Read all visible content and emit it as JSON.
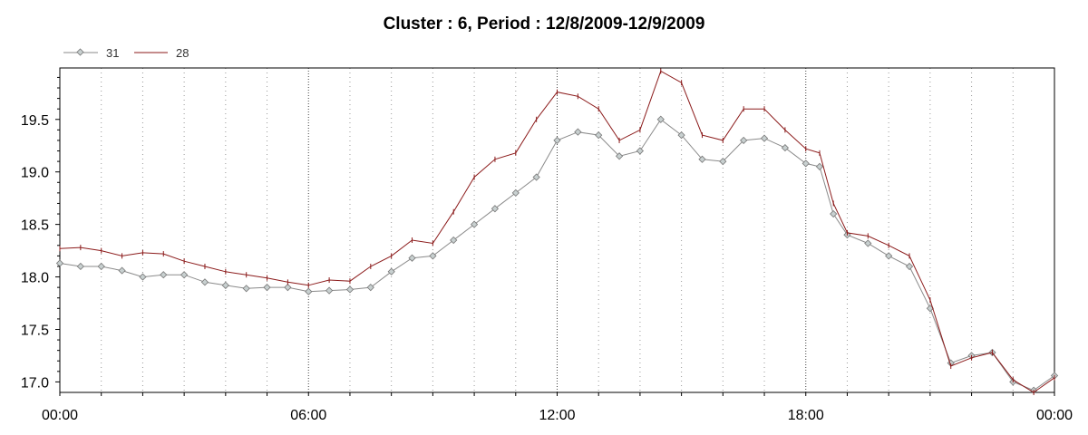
{
  "chart_data": {
    "type": "line",
    "title": "Cluster : 6, Period : 12/8/2009-12/9/2009",
    "xlabel": "",
    "ylabel": "",
    "x_ticks": [
      "00:00",
      "06:00",
      "12:00",
      "18:00",
      "00:00"
    ],
    "y_ticks": [
      "17.0",
      "17.5",
      "18.0",
      "18.5",
      "19.0",
      "19.5"
    ],
    "xlim_hours": [
      0,
      24
    ],
    "ylim": [
      16.9,
      19.99
    ],
    "grid": "dotted vertical lines every hour, stronger every 6 hours",
    "legend_placement": "top-left",
    "series": [
      {
        "name": "31",
        "color": "#8a8a8a",
        "marker": "diamond",
        "x": [
          "00:00",
          "00:30",
          "01:00",
          "01:30",
          "02:00",
          "02:30",
          "03:00",
          "03:30",
          "04:00",
          "04:30",
          "05:00",
          "05:30",
          "06:00",
          "06:30",
          "07:00",
          "07:30",
          "08:00",
          "08:30",
          "09:00",
          "09:30",
          "10:00",
          "10:30",
          "11:00",
          "11:30",
          "12:00",
          "12:30",
          "13:00",
          "13:30",
          "14:00",
          "14:30",
          "15:00",
          "15:30",
          "16:00",
          "16:30",
          "17:00",
          "17:30",
          "18:00",
          "18:20",
          "18:40",
          "19:00",
          "19:30",
          "20:00",
          "20:30",
          "21:00",
          "21:30",
          "22:00",
          "22:30",
          "23:00",
          "23:30",
          "24:00"
        ],
        "values": [
          18.13,
          18.1,
          18.1,
          18.06,
          18.0,
          18.02,
          18.02,
          17.95,
          17.92,
          17.89,
          17.9,
          17.9,
          17.86,
          17.87,
          17.88,
          17.9,
          18.05,
          18.18,
          18.2,
          18.35,
          18.5,
          18.65,
          18.8,
          18.95,
          19.3,
          19.38,
          19.35,
          19.15,
          19.2,
          19.5,
          19.35,
          19.12,
          19.1,
          19.3,
          19.32,
          19.23,
          19.08,
          19.05,
          18.6,
          18.4,
          18.32,
          18.2,
          18.1,
          17.7,
          17.18,
          17.25,
          17.28,
          17.0,
          16.92,
          17.06
        ]
      },
      {
        "name": "28",
        "color": "#8b1a1a",
        "marker": "none",
        "x": [
          "00:00",
          "00:30",
          "01:00",
          "01:30",
          "02:00",
          "02:30",
          "03:00",
          "03:30",
          "04:00",
          "04:30",
          "05:00",
          "05:30",
          "06:00",
          "06:30",
          "07:00",
          "07:30",
          "08:00",
          "08:30",
          "09:00",
          "09:30",
          "10:00",
          "10:30",
          "11:00",
          "11:30",
          "12:00",
          "12:30",
          "13:00",
          "13:30",
          "14:00",
          "14:30",
          "15:00",
          "15:30",
          "16:00",
          "16:30",
          "17:00",
          "17:30",
          "18:00",
          "18:20",
          "18:40",
          "19:00",
          "19:30",
          "20:00",
          "20:30",
          "21:00",
          "21:30",
          "22:00",
          "22:30",
          "23:00",
          "23:30",
          "24:00"
        ],
        "values": [
          18.27,
          18.28,
          18.25,
          18.2,
          18.23,
          18.22,
          18.15,
          18.1,
          18.05,
          18.02,
          17.99,
          17.95,
          17.92,
          17.97,
          17.96,
          18.1,
          18.2,
          18.35,
          18.32,
          18.62,
          18.95,
          19.12,
          19.18,
          19.5,
          19.76,
          19.72,
          19.6,
          19.3,
          19.4,
          19.96,
          19.85,
          19.35,
          19.3,
          19.6,
          19.6,
          19.4,
          19.22,
          19.18,
          18.7,
          18.42,
          18.39,
          18.3,
          18.2,
          17.78,
          17.15,
          17.23,
          17.28,
          17.02,
          16.9,
          17.04
        ]
      }
    ]
  }
}
